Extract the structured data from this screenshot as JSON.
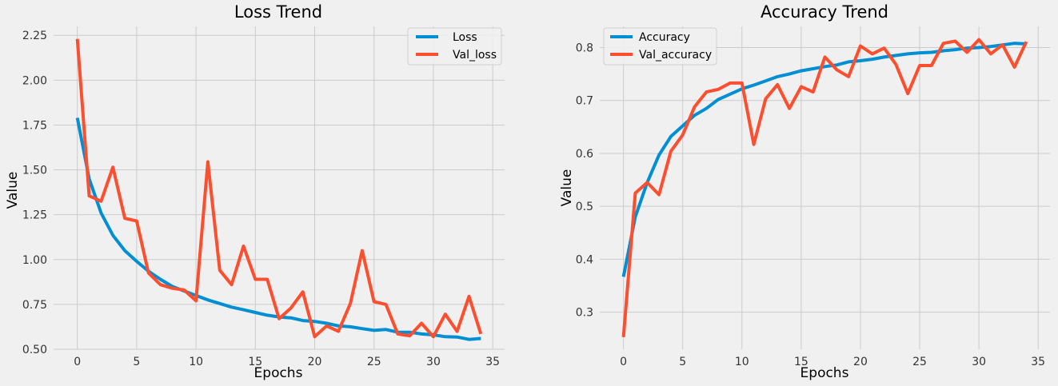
{
  "colors": {
    "background": "#f0f0f0",
    "grid": "#cbcbcb",
    "series_1": "#008fd5",
    "series_2": "#fc4f30"
  },
  "chart_data": [
    {
      "type": "line",
      "title": "Loss Trend",
      "xlabel": "Epochs",
      "ylabel": "Value",
      "xlim": [
        -2,
        36
      ],
      "ylim": [
        0.5,
        2.3
      ],
      "xticks": [
        0,
        5,
        10,
        15,
        20,
        25,
        30,
        35
      ],
      "yticks": [
        0.5,
        0.75,
        1.0,
        1.25,
        1.5,
        1.75,
        2.0,
        2.25
      ],
      "ytick_labels": [
        "0.50",
        "0.75",
        "1.00",
        "1.25",
        "1.50",
        "1.75",
        "2.00",
        "2.25"
      ],
      "grid": true,
      "legend": "top-right",
      "x": [
        0,
        1,
        2,
        3,
        4,
        5,
        6,
        7,
        8,
        9,
        10,
        11,
        12,
        13,
        14,
        15,
        16,
        17,
        18,
        19,
        20,
        21,
        22,
        23,
        24,
        25,
        26,
        27,
        28,
        29,
        30,
        31,
        32,
        33,
        34
      ],
      "series": [
        {
          "name": "Loss",
          "color": "#008fd5",
          "values": [
            1.79,
            1.45,
            1.26,
            1.135,
            1.05,
            0.99,
            0.935,
            0.89,
            0.85,
            0.825,
            0.8,
            0.775,
            0.755,
            0.735,
            0.72,
            0.705,
            0.69,
            0.68,
            0.675,
            0.66,
            0.655,
            0.645,
            0.63,
            0.625,
            0.615,
            0.605,
            0.61,
            0.595,
            0.595,
            0.585,
            0.58,
            0.57,
            0.568,
            0.555,
            0.56
          ]
        },
        {
          "name": "Val_loss",
          "color": "#fc4f30",
          "values": [
            2.23,
            1.355,
            1.325,
            1.515,
            1.23,
            1.215,
            0.925,
            0.86,
            0.84,
            0.83,
            0.77,
            1.545,
            0.94,
            0.86,
            1.075,
            0.89,
            0.89,
            0.67,
            0.73,
            0.82,
            0.57,
            0.63,
            0.6,
            0.755,
            1.05,
            0.765,
            0.75,
            0.585,
            0.575,
            0.645,
            0.57,
            0.695,
            0.6,
            0.795,
            0.585
          ]
        }
      ]
    },
    {
      "type": "line",
      "title": "Accuracy Trend",
      "xlabel": "Epochs",
      "ylabel": "Value",
      "xlim": [
        -2,
        36
      ],
      "ylim": [
        0.23,
        0.84
      ],
      "xticks": [
        0,
        5,
        10,
        15,
        20,
        25,
        30,
        35
      ],
      "yticks": [
        0.3,
        0.4,
        0.5,
        0.6,
        0.7,
        0.8
      ],
      "ytick_labels": [
        "0.3",
        "0.4",
        "0.5",
        "0.6",
        "0.7",
        "0.8"
      ],
      "grid": true,
      "legend": "top-left",
      "x": [
        0,
        1,
        2,
        3,
        4,
        5,
        6,
        7,
        8,
        9,
        10,
        11,
        12,
        13,
        14,
        15,
        16,
        17,
        18,
        19,
        20,
        21,
        22,
        23,
        24,
        25,
        26,
        27,
        28,
        29,
        30,
        31,
        32,
        33,
        34
      ],
      "series": [
        {
          "name": "Accuracy",
          "color": "#008fd5",
          "values": [
            0.367,
            0.48,
            0.545,
            0.597,
            0.632,
            0.652,
            0.672,
            0.685,
            0.702,
            0.712,
            0.722,
            0.729,
            0.737,
            0.745,
            0.75,
            0.756,
            0.76,
            0.764,
            0.767,
            0.773,
            0.775,
            0.778,
            0.782,
            0.785,
            0.788,
            0.79,
            0.791,
            0.794,
            0.796,
            0.799,
            0.8,
            0.802,
            0.805,
            0.808,
            0.807
          ]
        },
        {
          "name": "Val_accuracy",
          "color": "#fc4f30",
          "values": [
            0.253,
            0.525,
            0.545,
            0.522,
            0.604,
            0.635,
            0.688,
            0.716,
            0.721,
            0.733,
            0.733,
            0.617,
            0.703,
            0.73,
            0.685,
            0.726,
            0.716,
            0.782,
            0.758,
            0.745,
            0.803,
            0.788,
            0.799,
            0.768,
            0.713,
            0.766,
            0.766,
            0.808,
            0.812,
            0.791,
            0.815,
            0.788,
            0.805,
            0.763,
            0.811
          ]
        }
      ]
    }
  ]
}
